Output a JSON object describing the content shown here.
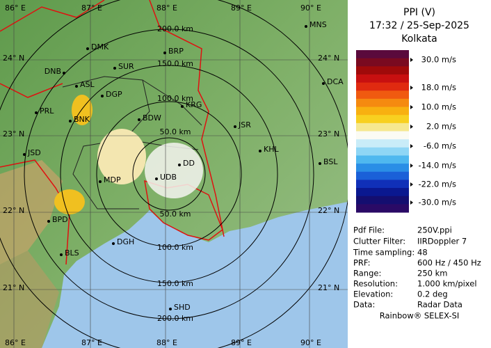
{
  "header": {
    "title": "PPI (V)",
    "datetime": "17:32 / 25-Sep-2025",
    "station": "Kolkata"
  },
  "legend": {
    "labels": [
      "30.0 m/s",
      "18.0 m/s",
      "10.0 m/s",
      "2.0 m/s",
      "-6.0 m/s",
      "-14.0 m/s",
      "-22.0 m/s",
      "-30.0 m/s"
    ]
  },
  "info": {
    "rows": [
      [
        "Pdf File:",
        "250V.ppi"
      ],
      [
        "Clutter Filter:",
        "IIRDoppler 7"
      ],
      [
        "Time sampling:",
        "48"
      ],
      [
        "PRF:",
        "600 Hz / 450 Hz"
      ],
      [
        "Range:",
        "250 km"
      ],
      [
        "Resolution:",
        "1.000 km/pixel"
      ],
      [
        "Elevation:",
        "0.2 deg"
      ],
      [
        "Data:",
        "Radar Data"
      ]
    ]
  },
  "footer": "Rainbow® SELEX-SI",
  "map": {
    "longitude_labels": [
      "86° E",
      "87° E",
      "88° E",
      "89° E",
      "90° E"
    ],
    "latitude_labels": [
      "24° N",
      "23° N",
      "22° N",
      "21° N"
    ],
    "range_labels_north": [
      "200.0 km",
      "150.0 km",
      "100.0 km",
      "50.0 km"
    ],
    "range_labels_south": [
      "50.0 km",
      "100.0 km",
      "150.0 km",
      "200.0 km"
    ],
    "stations": [
      "MNS",
      "DMK",
      "BRP",
      "DNB",
      "SUR",
      "ASL",
      "DGP",
      "DCA",
      "KRG",
      "BNK",
      "BDW",
      "PRL",
      "JSR",
      "KHL",
      "JSD",
      "DD",
      "BSL",
      "MDP",
      "UDB",
      "BPD",
      "DGH",
      "BLS",
      "SHD"
    ]
  }
}
